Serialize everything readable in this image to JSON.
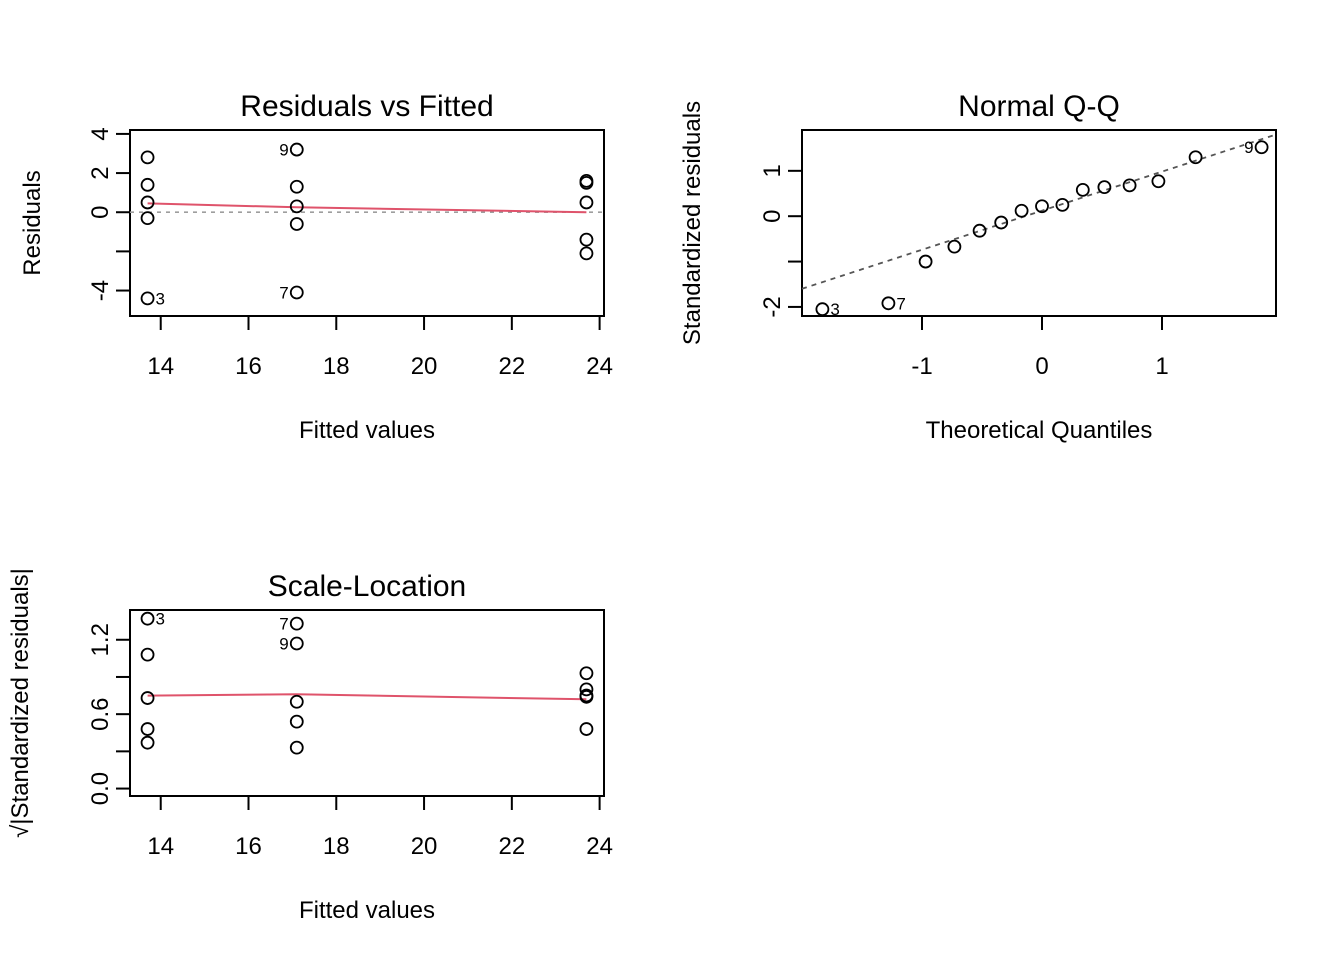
{
  "colors": {
    "smooth_line": "#DF536B",
    "reference_line": "#9e9e9e",
    "points": "#000000"
  },
  "chart_data": [
    {
      "type": "scatter",
      "title": "Residuals vs Fitted",
      "xlabel": "Fitted values",
      "ylabel": "Residuals",
      "xlim": [
        13.3,
        24.1
      ],
      "ylim": [
        -5.3,
        4.2
      ],
      "xticks": [
        14,
        16,
        18,
        20,
        22,
        24
      ],
      "xtick_labels": [
        "14",
        "16",
        "18",
        "20",
        "22",
        "24"
      ],
      "yticks": [
        -4,
        -2,
        0,
        2,
        4
      ],
      "ytick_labels": [
        "-4",
        "",
        "0",
        "2",
        "4"
      ],
      "reference_line": {
        "y": 0,
        "style": "dotted"
      },
      "points": [
        {
          "x": 13.7,
          "y": 2.8
        },
        {
          "x": 13.7,
          "y": 1.4
        },
        {
          "x": 13.7,
          "y": 0.5
        },
        {
          "x": 13.7,
          "y": -0.3
        },
        {
          "x": 13.7,
          "y": -4.4,
          "label": "3"
        },
        {
          "x": 17.1,
          "y": 3.2,
          "label": "9"
        },
        {
          "x": 17.1,
          "y": 1.3
        },
        {
          "x": 17.1,
          "y": 0.3
        },
        {
          "x": 17.1,
          "y": -0.6
        },
        {
          "x": 17.1,
          "y": -4.1,
          "label": "7"
        },
        {
          "x": 23.7,
          "y": 1.6
        },
        {
          "x": 23.7,
          "y": 1.5
        },
        {
          "x": 23.7,
          "y": 0.5
        },
        {
          "x": 23.7,
          "y": -1.4
        },
        {
          "x": 23.7,
          "y": -2.1
        }
      ],
      "smooth": [
        {
          "x": 13.7,
          "y": 0.45
        },
        {
          "x": 17.1,
          "y": 0.25
        },
        {
          "x": 23.7,
          "y": 0.0
        }
      ]
    },
    {
      "type": "scatter",
      "title": "Normal Q-Q",
      "xlabel": "Theoretical Quantiles",
      "ylabel": "Standardized residuals",
      "xlim": [
        -2.0,
        1.95
      ],
      "ylim": [
        -2.2,
        1.9
      ],
      "xticks": [
        -1,
        0,
        1
      ],
      "xtick_labels": [
        "-1",
        "0",
        "1"
      ],
      "yticks": [
        -2,
        -1,
        0,
        1
      ],
      "ytick_labels": [
        "-2",
        "",
        "0",
        "1"
      ],
      "reference_line": {
        "points": [
          [
            -2.0,
            -1.6
          ],
          [
            1.95,
            1.8
          ]
        ],
        "style": "dashed"
      },
      "points": [
        {
          "x": -1.83,
          "y": -2.05,
          "label": "3"
        },
        {
          "x": -1.28,
          "y": -1.92,
          "label": "7"
        },
        {
          "x": -0.97,
          "y": -1.0
        },
        {
          "x": -0.73,
          "y": -0.67
        },
        {
          "x": -0.52,
          "y": -0.32
        },
        {
          "x": -0.34,
          "y": -0.14
        },
        {
          "x": -0.17,
          "y": 0.12
        },
        {
          "x": 0.0,
          "y": 0.22
        },
        {
          "x": 0.17,
          "y": 0.25
        },
        {
          "x": 0.34,
          "y": 0.58
        },
        {
          "x": 0.52,
          "y": 0.64
        },
        {
          "x": 0.73,
          "y": 0.68
        },
        {
          "x": 0.97,
          "y": 0.77
        },
        {
          "x": 1.28,
          "y": 1.3
        },
        {
          "x": 1.83,
          "y": 1.52,
          "label": "9"
        }
      ]
    },
    {
      "type": "scatter",
      "title": "Scale-Location",
      "xlabel": "Fitted values",
      "ylabel": "√|Standardized residuals|",
      "xlim": [
        13.3,
        24.1
      ],
      "ylim": [
        -0.06,
        1.44
      ],
      "xticks": [
        14,
        16,
        18,
        20,
        22,
        24
      ],
      "xtick_labels": [
        "14",
        "16",
        "18",
        "20",
        "22",
        "24"
      ],
      "yticks": [
        0.0,
        0.3,
        0.6,
        0.9,
        1.2
      ],
      "ytick_labels": [
        "0.0",
        "",
        "0.6",
        "",
        "1.2"
      ],
      "points": [
        {
          "x": 13.7,
          "y": 1.37,
          "label": "3"
        },
        {
          "x": 13.7,
          "y": 1.08
        },
        {
          "x": 13.7,
          "y": 0.73
        },
        {
          "x": 13.7,
          "y": 0.48
        },
        {
          "x": 13.7,
          "y": 0.37
        },
        {
          "x": 17.1,
          "y": 1.33,
          "label": "7"
        },
        {
          "x": 17.1,
          "y": 1.17,
          "label": "9"
        },
        {
          "x": 17.1,
          "y": 0.7
        },
        {
          "x": 17.1,
          "y": 0.54
        },
        {
          "x": 17.1,
          "y": 0.33
        },
        {
          "x": 23.7,
          "y": 0.93
        },
        {
          "x": 23.7,
          "y": 0.8
        },
        {
          "x": 23.7,
          "y": 0.75
        },
        {
          "x": 23.7,
          "y": 0.74
        },
        {
          "x": 23.7,
          "y": 0.48
        }
      ],
      "smooth": [
        {
          "x": 13.7,
          "y": 0.75
        },
        {
          "x": 17.1,
          "y": 0.76
        },
        {
          "x": 23.7,
          "y": 0.72
        }
      ]
    }
  ]
}
